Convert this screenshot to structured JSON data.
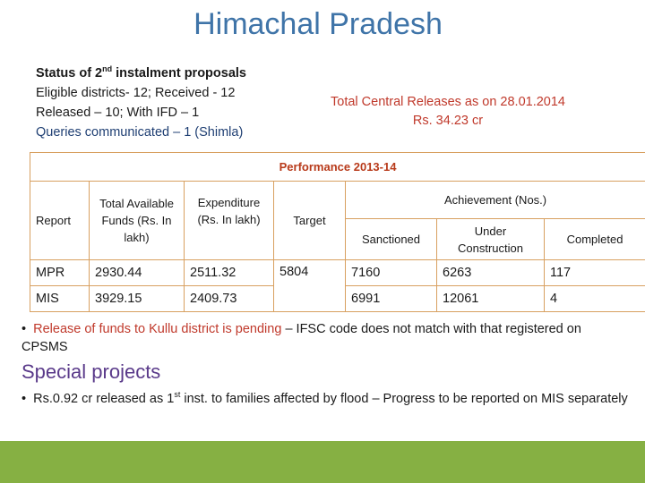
{
  "title": "Himachal  Pradesh",
  "status": {
    "heading_pre": "Status of 2",
    "heading_sup": "nd",
    "heading_post": " instalment proposals",
    "eligible": "Eligible districts- 12; Received - 12",
    "released": "Released – 10; With IFD – 1",
    "queries": "Queries communicated – 1 (Shimla)"
  },
  "releases": {
    "line1": "Total Central Releases as on 28.01.2014",
    "line2": "Rs. 34.23 cr"
  },
  "table": {
    "caption": "Performance   2013-14",
    "headers": {
      "report": "Report",
      "funds": "Total Available Funds (Rs. In lakh)",
      "expenditure": "Expenditure (Rs. In lakh)",
      "target": "Target",
      "achievement": "Achievement (Nos.)",
      "sanctioned": "Sanctioned",
      "under_construction": "Under Construction",
      "completed": "Completed"
    },
    "rows": [
      {
        "report": "MPR",
        "funds": "2930.44",
        "expenditure": "2511.32",
        "target": "5804",
        "sanctioned": "7160",
        "under_construction": "6263",
        "completed": "117"
      },
      {
        "report": "MIS",
        "funds": "3929.15",
        "expenditure": "2409.73",
        "target": "",
        "sanctioned": "6991",
        "under_construction": "12061",
        "completed": "4"
      }
    ]
  },
  "note1": {
    "bullet": "•",
    "red_part": "Release of funds to Kullu district is pending",
    "rest": " – IFSC code does not match with that registered on CPSMS"
  },
  "special_projects": {
    "heading": "Special projects",
    "bullet": "•",
    "pre": "Rs.0.92 cr released as 1",
    "sup": "st",
    "post": " inst. to families affected by flood – Progress to be reported on MIS separately"
  },
  "colors": {
    "title": "#3f74a8",
    "red_text": "#c0392b",
    "purple_heading": "#5a3a8a",
    "table_border": "#d8a060",
    "footer_bar": "#86b043"
  }
}
